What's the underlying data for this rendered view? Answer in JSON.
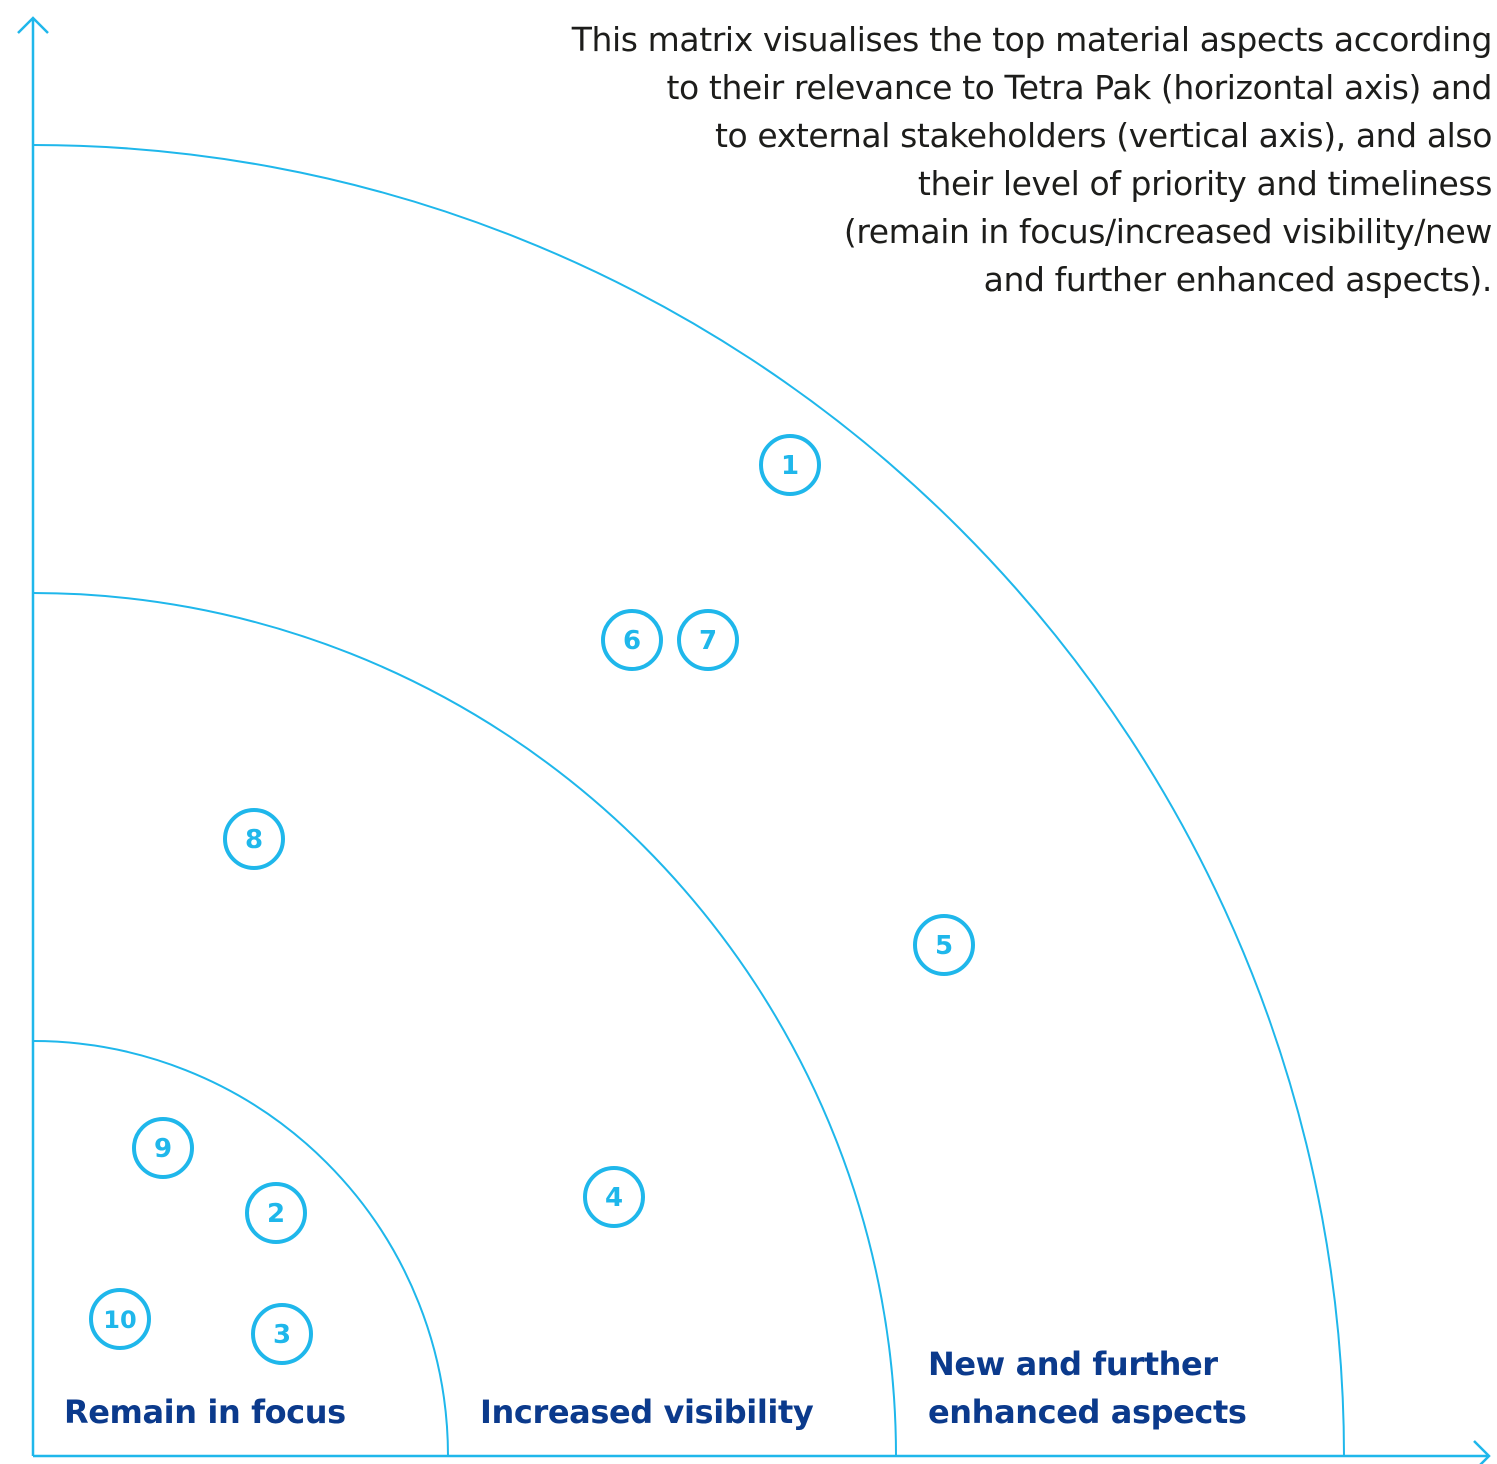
{
  "colors": {
    "line": "#1fb7eb",
    "marker": "#1fb7eb",
    "zone_label": "#0b3a8c",
    "description": "#1d1d1b"
  },
  "description": {
    "lines": [
      "This matrix visualises the top material aspects according",
      "to their relevance to Tetra Pak (horizontal axis) and",
      "to external stakeholders (vertical axis), and also",
      "their level of priority and timeliness",
      "(remain in focus/increased visibility/new",
      "and further enhanced aspects)."
    ]
  },
  "zones": [
    {
      "id": "remain",
      "lines": [
        "Remain in focus"
      ]
    },
    {
      "id": "increased",
      "lines": [
        "Increased visibility"
      ]
    },
    {
      "id": "new",
      "lines": [
        "New and further",
        "enhanced aspects"
      ]
    }
  ],
  "markers": [
    {
      "label": "1"
    },
    {
      "label": "2"
    },
    {
      "label": "3"
    },
    {
      "label": "4"
    },
    {
      "label": "5"
    },
    {
      "label": "6"
    },
    {
      "label": "7"
    },
    {
      "label": "8"
    },
    {
      "label": "9"
    },
    {
      "label": "10"
    }
  ]
}
